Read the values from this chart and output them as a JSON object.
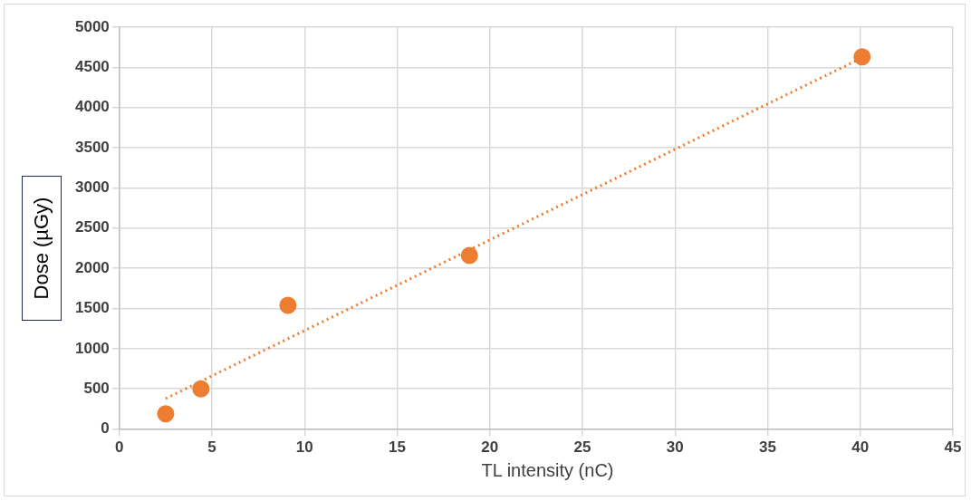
{
  "chart_data": {
    "type": "scatter",
    "xlabel": "TL intensity (nC)",
    "ylabel": "Dose (µGy)",
    "xlim": [
      0,
      45
    ],
    "xticks": [
      0,
      5,
      10,
      15,
      20,
      25,
      30,
      35,
      40,
      45
    ],
    "ylim": [
      0,
      5000
    ],
    "yticks": [
      0,
      500,
      1000,
      1500,
      2000,
      2500,
      3000,
      3500,
      4000,
      4500,
      5000
    ],
    "grid": true,
    "marker": "circle",
    "series": [
      {
        "type": "scatter",
        "color": "#ed7d31",
        "x": [
          2.5,
          4.4,
          9.1,
          18.9,
          40.1
        ],
        "values": [
          190,
          500,
          1540,
          2160,
          4630
        ]
      },
      {
        "type": "line",
        "color": "#ed7d31",
        "x": [
          2.5,
          40.1
        ],
        "values": [
          380,
          4620
        ],
        "line_style": "dotted",
        "marker": "none"
      }
    ]
  }
}
